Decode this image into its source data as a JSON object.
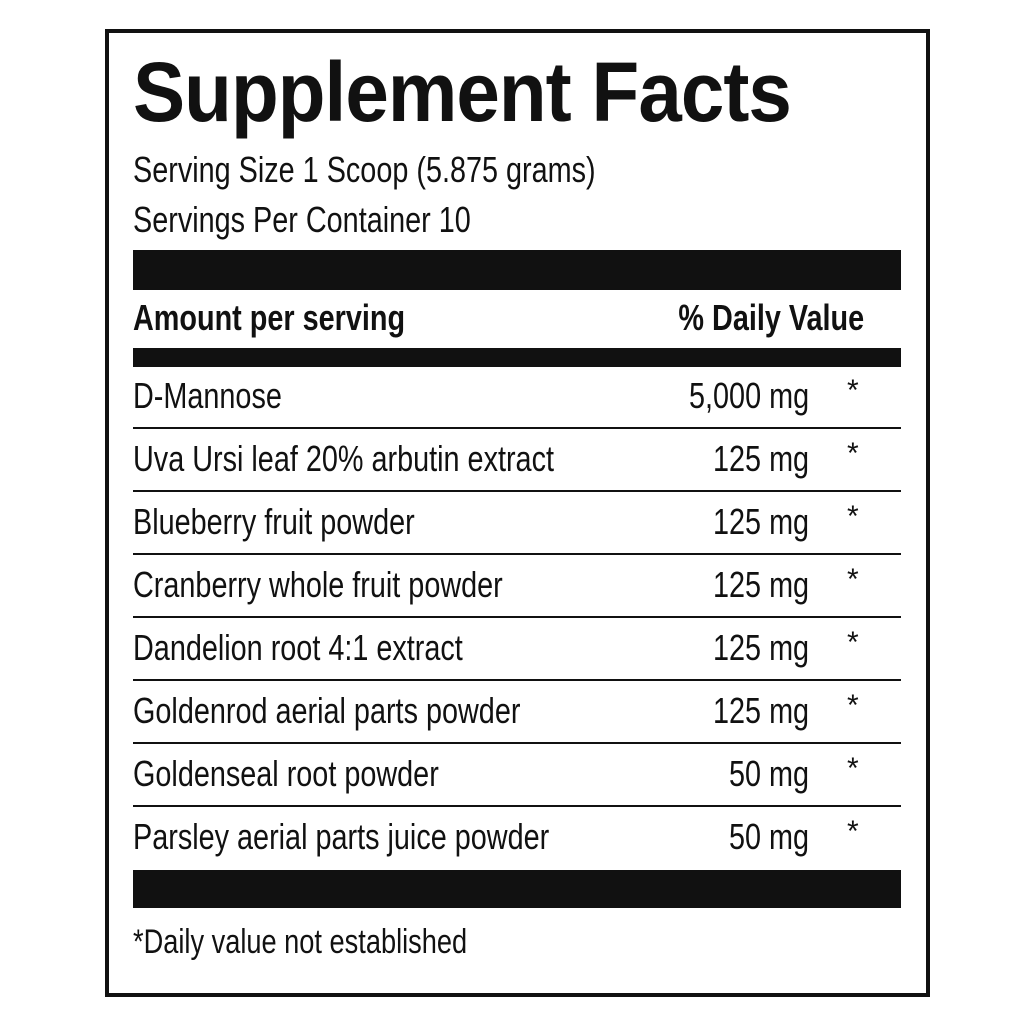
{
  "title": "Supplement Facts",
  "serving_size": "Serving Size 1 Scoop (5.875 grams)",
  "servings_per_container": "Servings Per Container 10",
  "header": {
    "amount": "Amount per serving",
    "daily_value": "% Daily Value"
  },
  "rows": [
    {
      "name": "D-Mannose",
      "amount": "5,000 mg",
      "dv": "*"
    },
    {
      "name": "Uva Ursi leaf 20% arbutin extract",
      "amount": "125 mg",
      "dv": "*"
    },
    {
      "name": "Blueberry fruit powder",
      "amount": "125 mg",
      "dv": "*"
    },
    {
      "name": "Cranberry whole fruit powder",
      "amount": "125 mg",
      "dv": "*"
    },
    {
      "name": "Dandelion root 4:1 extract",
      "amount": "125 mg",
      "dv": "*"
    },
    {
      "name": "Goldenrod aerial parts powder",
      "amount": "125 mg",
      "dv": "*"
    },
    {
      "name": "Goldenseal root powder",
      "amount": "50 mg",
      "dv": "*"
    },
    {
      "name": "Parsley aerial parts juice powder",
      "amount": "50 mg",
      "dv": "*"
    }
  ],
  "footnote": "*Daily value not established"
}
